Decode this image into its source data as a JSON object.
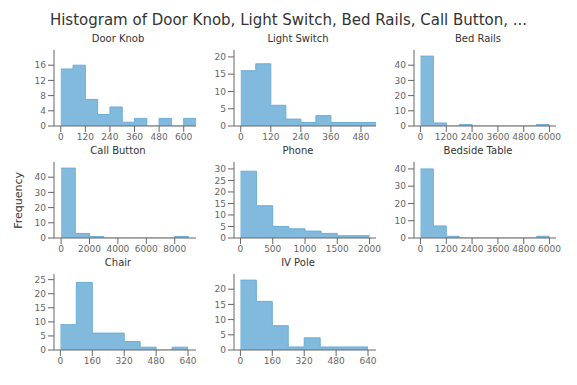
{
  "title": "Histogram of Door Knob, Light Switch, Bed Rails, Call Button, ...",
  "ylabel": "Frequency",
  "chart_data": [
    {
      "type": "histogram",
      "title": "Door Knob",
      "color": "#6baed6",
      "bins": [
        0,
        60,
        120,
        180,
        240,
        300,
        360,
        420,
        480,
        540,
        600,
        660
      ],
      "values": [
        15,
        16,
        7,
        3,
        5,
        1,
        2,
        0,
        2,
        0,
        2
      ],
      "xlim": [
        -33,
        660
      ],
      "ylim": [
        0,
        20
      ],
      "yticks": [
        0,
        4,
        8,
        12,
        16
      ],
      "xticks": [
        0,
        120,
        240,
        360,
        480,
        600
      ]
    },
    {
      "type": "histogram",
      "title": "Light Switch",
      "color": "#6baed6",
      "bins": [
        0,
        60,
        120,
        180,
        240,
        300,
        360,
        420,
        480,
        540
      ],
      "values": [
        16,
        18,
        6,
        2,
        1,
        3,
        1,
        1,
        1
      ],
      "xlim": [
        -27,
        540
      ],
      "ylim": [
        0,
        22
      ],
      "yticks": [
        0,
        5,
        10,
        15,
        20
      ],
      "xticks": [
        0,
        120,
        240,
        360,
        480
      ]
    },
    {
      "type": "histogram",
      "title": "Bed Rails",
      "color": "#6baed6",
      "bins": [
        0,
        600,
        1200,
        1800,
        2400,
        3000,
        3600,
        4200,
        4800,
        5400,
        6000
      ],
      "values": [
        46,
        2,
        0,
        1,
        0,
        0,
        0,
        0,
        0,
        1
      ],
      "xlim": [
        -300,
        6300
      ],
      "ylim": [
        0,
        50
      ],
      "yticks": [
        0,
        10,
        20,
        30,
        40
      ],
      "xticks": [
        0,
        1200,
        2400,
        3600,
        4800,
        6000
      ]
    },
    {
      "type": "histogram",
      "title": "Call Button",
      "color": "#6baed6",
      "bins": [
        0,
        1000,
        2000,
        3000,
        4000,
        5000,
        6000,
        7000,
        8000,
        9000
      ],
      "values": [
        46,
        3,
        1,
        0,
        0,
        0,
        0,
        0,
        1
      ],
      "xlim": [
        -500,
        9500
      ],
      "ylim": [
        0,
        50
      ],
      "yticks": [
        0,
        10,
        20,
        30,
        40
      ],
      "xticks": [
        0,
        2000,
        4000,
        6000,
        8000
      ]
    },
    {
      "type": "histogram",
      "title": "Phone",
      "color": "#6baed6",
      "bins": [
        0,
        250,
        500,
        750,
        1000,
        1250,
        1500,
        1750,
        2000
      ],
      "values": [
        29,
        14,
        5,
        4,
        3,
        2,
        1,
        1
      ],
      "xlim": [
        -100,
        2100
      ],
      "ylim": [
        0,
        33
      ],
      "yticks": [
        0,
        5,
        10,
        15,
        20,
        25,
        30
      ],
      "xticks": [
        0,
        500,
        1000,
        1500,
        2000
      ]
    },
    {
      "type": "histogram",
      "title": "Bedside Table",
      "color": "#6baed6",
      "bins": [
        0,
        600,
        1200,
        1800,
        2400,
        3000,
        3600,
        4200,
        4800,
        5400,
        6000
      ],
      "values": [
        40,
        7,
        1,
        0,
        0,
        0,
        0,
        0,
        0,
        1
      ],
      "xlim": [
        -300,
        6300
      ],
      "ylim": [
        0,
        44
      ],
      "yticks": [
        0,
        10,
        20,
        30,
        40
      ],
      "xticks": [
        0,
        1200,
        2400,
        3600,
        4800,
        6000
      ]
    },
    {
      "type": "histogram",
      "title": "Chair",
      "color": "#6baed6",
      "bins": [
        0,
        80,
        160,
        240,
        320,
        400,
        480,
        560,
        640
      ],
      "values": [
        9,
        24,
        6,
        6,
        3,
        1,
        0,
        1
      ],
      "xlim": [
        -32,
        680
      ],
      "ylim": [
        0,
        27
      ],
      "yticks": [
        0,
        5,
        10,
        15,
        20,
        25
      ],
      "xticks": [
        0,
        160,
        320,
        480,
        640
      ]
    },
    {
      "type": "histogram",
      "title": "IV Pole",
      "color": "#6baed6",
      "bins": [
        0,
        80,
        160,
        240,
        320,
        400,
        480,
        560,
        640
      ],
      "values": [
        23,
        16,
        8,
        1,
        4,
        1,
        1,
        1
      ],
      "xlim": [
        -32,
        680
      ],
      "ylim": [
        0,
        25
      ],
      "yticks": [
        0,
        5,
        10,
        15,
        20
      ],
      "xticks": [
        0,
        160,
        320,
        480,
        640
      ]
    }
  ]
}
